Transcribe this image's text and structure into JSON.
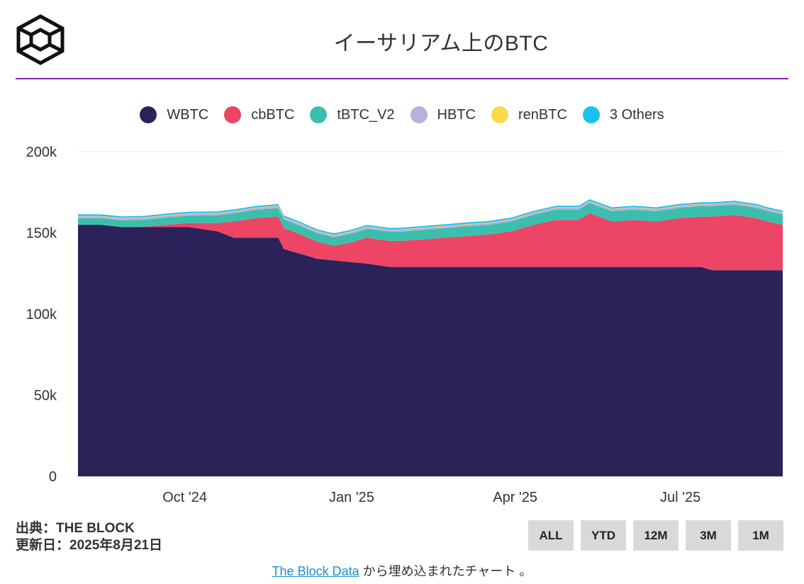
{
  "header": {
    "title": "イーサリアム上のBTC",
    "logo_icon": "the-block-cube-logo-icon"
  },
  "legend": [
    {
      "label": "WBTC",
      "color": "#2b225a"
    },
    {
      "label": "cbBTC",
      "color": "#ec4565"
    },
    {
      "label": "tBTC_V2",
      "color": "#3bbfad"
    },
    {
      "label": "HBTC",
      "color": "#b9b0dc"
    },
    {
      "label": "renBTC",
      "color": "#f9d94a"
    },
    {
      "label": "3 Others",
      "color": "#19c1ee"
    }
  ],
  "chart_data": {
    "type": "area",
    "stacked": true,
    "title": "イーサリアム上のBTC",
    "xlabel": "",
    "ylabel": "",
    "ylim": [
      0,
      200000
    ],
    "yticks": [
      0,
      50000,
      100000,
      150000,
      200000
    ],
    "ytick_labels": [
      "0",
      "50k",
      "100k",
      "150k",
      "200k"
    ],
    "x_tick_labels": [
      {
        "label": "Oct '24",
        "t": 1.92
      },
      {
        "label": "Jan '25",
        "t": 4.92
      },
      {
        "label": "Apr '25",
        "t": 7.86
      },
      {
        "label": "Jul '25",
        "t": 10.83
      }
    ],
    "x_range": [
      0,
      12.67
    ],
    "x_unit": "months since 2024-08-03",
    "grid": true,
    "x": [
      0,
      0.4,
      0.8,
      1.2,
      1.6,
      2.0,
      2.5,
      2.8,
      3.2,
      3.6,
      3.7,
      4.0,
      4.3,
      4.6,
      4.9,
      5.2,
      5.6,
      5.8,
      6.2,
      6.6,
      7.0,
      7.4,
      7.8,
      8.2,
      8.6,
      9.0,
      9.2,
      9.6,
      10.0,
      10.4,
      10.8,
      11.2,
      11.4,
      11.8,
      12.2,
      12.4,
      12.67
    ],
    "series": [
      {
        "name": "WBTC",
        "values": [
          155000,
          155000,
          153500,
          153500,
          153500,
          153500,
          151000,
          147000,
          147000,
          147000,
          140000,
          137000,
          134000,
          133000,
          132000,
          131000,
          129000,
          129000,
          129000,
          129000,
          129000,
          129000,
          129000,
          129000,
          129000,
          129000,
          129000,
          129000,
          129000,
          129000,
          129000,
          129000,
          127000,
          127000,
          127000,
          127000,
          127000
        ]
      },
      {
        "name": "cbBTC",
        "values": [
          0,
          0,
          0,
          300,
          1500,
          2500,
          5000,
          10000,
          12000,
          13000,
          13000,
          12000,
          10500,
          9000,
          12000,
          16000,
          16000,
          16000,
          17000,
          18000,
          19000,
          20000,
          22000,
          26000,
          29000,
          29000,
          33000,
          28000,
          29000,
          28000,
          30000,
          31000,
          33000,
          34000,
          32000,
          30000,
          28000
        ]
      },
      {
        "name": "tBTC_V2",
        "values": [
          4000,
          4000,
          4200,
          4300,
          4500,
          4600,
          4800,
          5000,
          5200,
          5300,
          5300,
          5300,
          5300,
          5300,
          5400,
          5500,
          5600,
          5700,
          5800,
          5900,
          6000,
          6000,
          6100,
          6200,
          6300,
          6300,
          6300,
          6300,
          6300,
          6300,
          6400,
          6400,
          6400,
          6400,
          6400,
          6300,
          6300
        ]
      },
      {
        "name": "HBTC",
        "values": [
          1200,
          1200,
          1200,
          1200,
          1200,
          1200,
          1200,
          1200,
          1200,
          1200,
          1200,
          1200,
          1200,
          1200,
          1200,
          1200,
          1200,
          1200,
          1200,
          1200,
          1200,
          1200,
          1200,
          1200,
          1200,
          1200,
          1200,
          1200,
          1200,
          1200,
          1200,
          1200,
          1200,
          1200,
          1200,
          1200,
          1200
        ]
      },
      {
        "name": "renBTC",
        "values": [
          300,
          300,
          300,
          300,
          300,
          300,
          300,
          300,
          300,
          300,
          300,
          300,
          300,
          300,
          300,
          300,
          300,
          300,
          300,
          300,
          300,
          300,
          300,
          300,
          300,
          300,
          300,
          300,
          300,
          300,
          300,
          300,
          300,
          300,
          300,
          300,
          300
        ]
      },
      {
        "name": "3 Others",
        "values": [
          900,
          900,
          900,
          900,
          900,
          900,
          900,
          900,
          900,
          900,
          900,
          900,
          900,
          900,
          900,
          900,
          900,
          900,
          900,
          900,
          900,
          900,
          900,
          900,
          900,
          900,
          900,
          900,
          900,
          900,
          900,
          900,
          900,
          900,
          900,
          900,
          900
        ]
      }
    ]
  },
  "footer": {
    "source_line": "出典：THE BLOCK",
    "updated_line": "更新日：2025年8月21日",
    "buttons": [
      "ALL",
      "YTD",
      "12M",
      "3M",
      "1M"
    ],
    "embed_link": "The Block Data",
    "embed_text": " から埋め込まれたチャート 。"
  }
}
